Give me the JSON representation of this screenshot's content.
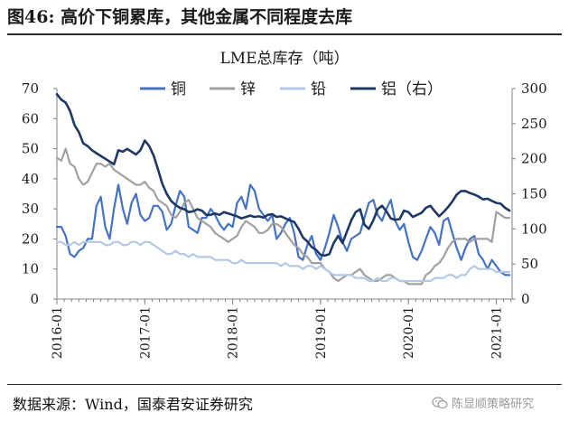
{
  "header": {
    "title": "图46: 高价下铜累库，其他金属不同程度去库"
  },
  "footer": {
    "source": "数据来源：Wind，国泰君安证券研究",
    "watermark": "陈显顺策略研究"
  },
  "icons": {
    "watermark_icon": "wechat-icon"
  },
  "chart_data": {
    "type": "line",
    "title": "LME总库存（吨）",
    "xlabel": "",
    "ylabel": "",
    "x_tick_labels": [
      "2016-01",
      "2017-01",
      "2018-01",
      "2019-01",
      "2020-01",
      "2021-01"
    ],
    "y_left": {
      "min": 0,
      "max": 70,
      "ticks": [
        0,
        10,
        20,
        30,
        40,
        50,
        60,
        70
      ]
    },
    "y_right": {
      "min": 0,
      "max": 300,
      "ticks": [
        0,
        50,
        100,
        150,
        200,
        250,
        300
      ]
    },
    "grid": false,
    "legend_position": "top",
    "series": [
      {
        "name": "铜",
        "axis": "left",
        "color": "#4472c4",
        "x": [
          2016.0,
          2016.05,
          2016.1,
          2016.15,
          2016.2,
          2016.25,
          2016.3,
          2016.35,
          2016.4,
          2016.45,
          2016.5,
          2016.55,
          2016.6,
          2016.65,
          2016.7,
          2016.75,
          2016.8,
          2016.85,
          2016.9,
          2016.95,
          2017.0,
          2017.05,
          2017.1,
          2017.15,
          2017.2,
          2017.25,
          2017.3,
          2017.35,
          2017.4,
          2017.45,
          2017.5,
          2017.55,
          2017.6,
          2017.65,
          2017.7,
          2017.75,
          2017.8,
          2017.85,
          2017.9,
          2017.95,
          2018.0,
          2018.05,
          2018.1,
          2018.15,
          2018.2,
          2018.25,
          2018.3,
          2018.35,
          2018.4,
          2018.45,
          2018.5,
          2018.55,
          2018.6,
          2018.65,
          2018.7,
          2018.75,
          2018.8,
          2018.85,
          2018.9,
          2018.95,
          2019.0,
          2019.05,
          2019.1,
          2019.15,
          2019.2,
          2019.25,
          2019.3,
          2019.35,
          2019.4,
          2019.45,
          2019.5,
          2019.55,
          2019.6,
          2019.65,
          2019.7,
          2019.75,
          2019.8,
          2019.85,
          2019.9,
          2019.95,
          2020.0,
          2020.05,
          2020.1,
          2020.15,
          2020.2,
          2020.25,
          2020.3,
          2020.35,
          2020.4,
          2020.45,
          2020.5,
          2020.55,
          2020.6,
          2020.65,
          2020.7,
          2020.75,
          2020.8,
          2020.85,
          2020.9,
          2020.95,
          2021.0,
          2021.05,
          2021.1,
          2021.15
        ],
        "values": [
          24,
          24,
          21,
          15,
          14,
          16,
          17,
          20,
          20,
          31,
          34,
          24,
          20,
          30,
          38,
          30,
          25,
          32,
          35,
          28,
          26,
          27,
          31,
          31,
          29,
          23,
          25,
          31,
          36,
          34,
          24,
          23,
          22,
          27,
          27,
          30,
          28,
          25,
          23,
          25,
          24,
          32,
          34,
          30,
          38,
          36,
          30,
          28,
          26,
          28,
          20,
          22,
          25,
          27,
          22,
          14,
          13,
          18,
          21,
          15,
          13,
          17,
          22,
          28,
          24,
          19,
          16,
          20,
          21,
          22,
          27,
          32,
          33,
          28,
          26,
          30,
          33,
          26,
          23,
          25,
          19,
          14,
          13,
          16,
          20,
          24,
          22,
          18,
          26,
          27,
          22,
          17,
          13,
          17,
          20,
          21,
          15,
          13,
          10,
          13,
          11,
          9,
          8,
          8
        ]
      },
      {
        "name": "锌",
        "axis": "left",
        "color": "#a0a0a0",
        "x": [
          2016.0,
          2016.05,
          2016.1,
          2016.15,
          2016.2,
          2016.25,
          2016.3,
          2016.35,
          2016.4,
          2016.45,
          2016.5,
          2016.55,
          2016.6,
          2016.65,
          2016.7,
          2016.75,
          2016.8,
          2016.85,
          2016.9,
          2016.95,
          2017.0,
          2017.05,
          2017.1,
          2017.15,
          2017.2,
          2017.25,
          2017.3,
          2017.35,
          2017.4,
          2017.45,
          2017.5,
          2017.55,
          2017.6,
          2017.65,
          2017.7,
          2017.75,
          2017.8,
          2017.85,
          2017.9,
          2017.95,
          2018.0,
          2018.05,
          2018.1,
          2018.15,
          2018.2,
          2018.25,
          2018.3,
          2018.35,
          2018.4,
          2018.45,
          2018.5,
          2018.55,
          2018.6,
          2018.65,
          2018.7,
          2018.75,
          2018.8,
          2018.85,
          2018.9,
          2018.95,
          2019.0,
          2019.05,
          2019.1,
          2019.15,
          2019.2,
          2019.25,
          2019.3,
          2019.35,
          2019.4,
          2019.45,
          2019.5,
          2019.55,
          2019.6,
          2019.65,
          2019.7,
          2019.75,
          2019.8,
          2019.85,
          2019.9,
          2019.95,
          2020.0,
          2020.05,
          2020.1,
          2020.15,
          2020.2,
          2020.25,
          2020.3,
          2020.35,
          2020.4,
          2020.45,
          2020.5,
          2020.55,
          2020.6,
          2020.65,
          2020.7,
          2020.75,
          2020.8,
          2020.85,
          2020.9,
          2020.95,
          2021.0,
          2021.05,
          2021.1,
          2021.15
        ],
        "values": [
          47,
          46,
          50,
          45,
          44,
          40,
          38,
          39,
          42,
          45,
          45,
          44,
          45,
          43,
          42,
          41,
          40,
          39,
          38,
          38,
          39,
          37,
          36,
          33,
          32,
          31,
          28,
          27,
          29,
          32,
          33,
          30,
          27,
          26,
          25,
          24,
          22,
          21,
          20,
          19,
          20,
          21,
          24,
          26,
          25,
          24,
          22,
          22,
          23,
          25,
          25,
          24,
          22,
          20,
          18,
          17,
          15,
          14,
          12,
          12,
          12,
          10,
          9,
          7,
          6,
          7,
          8,
          8,
          9,
          10,
          8,
          7,
          6,
          6,
          7,
          8,
          8,
          7,
          6,
          6,
          5,
          5,
          5,
          5,
          8,
          9,
          11,
          12,
          14,
          17,
          19,
          20,
          20,
          20,
          19,
          20,
          20,
          20,
          20,
          19,
          29,
          28,
          27,
          27
        ]
      },
      {
        "name": "铅",
        "axis": "left",
        "color": "#b4c7e7",
        "x": [
          2016.0,
          2016.05,
          2016.1,
          2016.15,
          2016.2,
          2016.25,
          2016.3,
          2016.35,
          2016.4,
          2016.45,
          2016.5,
          2016.55,
          2016.6,
          2016.65,
          2016.7,
          2016.75,
          2016.8,
          2016.85,
          2016.9,
          2016.95,
          2017.0,
          2017.05,
          2017.1,
          2017.15,
          2017.2,
          2017.25,
          2017.3,
          2017.35,
          2017.4,
          2017.45,
          2017.5,
          2017.55,
          2017.6,
          2017.65,
          2017.7,
          2017.75,
          2017.8,
          2017.85,
          2017.9,
          2017.95,
          2018.0,
          2018.05,
          2018.1,
          2018.15,
          2018.2,
          2018.25,
          2018.3,
          2018.35,
          2018.4,
          2018.45,
          2018.5,
          2018.55,
          2018.6,
          2018.65,
          2018.7,
          2018.75,
          2018.8,
          2018.85,
          2018.9,
          2018.95,
          2019.0,
          2019.05,
          2019.1,
          2019.15,
          2019.2,
          2019.25,
          2019.3,
          2019.35,
          2019.4,
          2019.45,
          2019.5,
          2019.55,
          2019.6,
          2019.65,
          2019.7,
          2019.75,
          2019.8,
          2019.85,
          2019.9,
          2019.95,
          2020.0,
          2020.05,
          2020.1,
          2020.15,
          2020.2,
          2020.25,
          2020.3,
          2020.35,
          2020.4,
          2020.45,
          2020.5,
          2020.55,
          2020.6,
          2020.65,
          2020.7,
          2020.75,
          2020.8,
          2020.85,
          2020.9,
          2020.95,
          2021.0,
          2021.05,
          2021.1,
          2021.15
        ],
        "values": [
          19,
          19,
          18,
          18,
          19,
          18,
          19,
          19,
          19,
          19,
          19,
          18,
          18,
          19,
          19,
          18,
          18,
          19,
          19,
          18,
          19,
          19,
          18,
          17,
          16,
          15,
          15,
          16,
          15,
          15,
          14,
          15,
          14,
          14,
          14,
          14,
          13,
          13,
          13,
          13,
          12,
          12,
          13,
          12,
          12,
          12,
          12,
          12,
          12,
          12,
          12,
          11,
          12,
          11,
          11,
          11,
          10,
          11,
          11,
          10,
          11,
          10,
          9,
          8,
          8,
          8,
          8,
          8,
          7,
          7,
          7,
          6,
          6,
          7,
          6,
          6,
          7,
          7,
          6,
          6,
          6,
          6,
          6,
          6,
          6,
          6,
          7,
          7,
          7,
          8,
          8,
          7,
          8,
          8,
          10,
          11,
          10,
          10,
          10,
          10,
          9,
          9,
          9,
          9
        ]
      },
      {
        "name": "铝（右）",
        "axis": "right",
        "color": "#1f3864",
        "x": [
          2016.0,
          2016.05,
          2016.1,
          2016.15,
          2016.2,
          2016.25,
          2016.3,
          2016.35,
          2016.4,
          2016.45,
          2016.5,
          2016.55,
          2016.6,
          2016.65,
          2016.7,
          2016.75,
          2016.8,
          2016.85,
          2016.9,
          2016.95,
          2017.0,
          2017.05,
          2017.1,
          2017.15,
          2017.2,
          2017.25,
          2017.3,
          2017.35,
          2017.4,
          2017.45,
          2017.5,
          2017.55,
          2017.6,
          2017.65,
          2017.7,
          2017.75,
          2017.8,
          2017.85,
          2017.9,
          2017.95,
          2018.0,
          2018.05,
          2018.1,
          2018.15,
          2018.2,
          2018.25,
          2018.3,
          2018.35,
          2018.4,
          2018.45,
          2018.5,
          2018.55,
          2018.6,
          2018.65,
          2018.7,
          2018.75,
          2018.8,
          2018.85,
          2018.9,
          2018.95,
          2019.0,
          2019.05,
          2019.1,
          2019.15,
          2019.2,
          2019.25,
          2019.3,
          2019.35,
          2019.4,
          2019.45,
          2019.5,
          2019.55,
          2019.6,
          2019.65,
          2019.7,
          2019.75,
          2019.8,
          2019.85,
          2019.9,
          2019.95,
          2020.0,
          2020.05,
          2020.1,
          2020.15,
          2020.2,
          2020.25,
          2020.3,
          2020.35,
          2020.4,
          2020.45,
          2020.5,
          2020.55,
          2020.6,
          2020.65,
          2020.7,
          2020.75,
          2020.8,
          2020.85,
          2020.9,
          2020.95,
          2021.0,
          2021.05,
          2021.1,
          2021.15
        ],
        "values": [
          292,
          284,
          280,
          268,
          248,
          238,
          222,
          218,
          212,
          208,
          204,
          200,
          196,
          192,
          212,
          210,
          214,
          210,
          206,
          212,
          226,
          218,
          205,
          185,
          164,
          150,
          140,
          134,
          130,
          128,
          124,
          125,
          128,
          126,
          120,
          120,
          122,
          120,
          124,
          122,
          120,
          118,
          115,
          117,
          119,
          117,
          118,
          116,
          120,
          121,
          117,
          118,
          115,
          112,
          110,
          100,
          88,
          82,
          74,
          70,
          63,
          62,
          64,
          80,
          90,
          80,
          96,
          112,
          124,
          128,
          106,
          100,
          112,
          128,
          133,
          125,
          115,
          113,
          114,
          126,
          124,
          117,
          120,
          123,
          130,
          133,
          125,
          118,
          124,
          131,
          139,
          149,
          154,
          154,
          151,
          149,
          146,
          142,
          143,
          140,
          137,
          136,
          130,
          126
        ]
      }
    ]
  }
}
